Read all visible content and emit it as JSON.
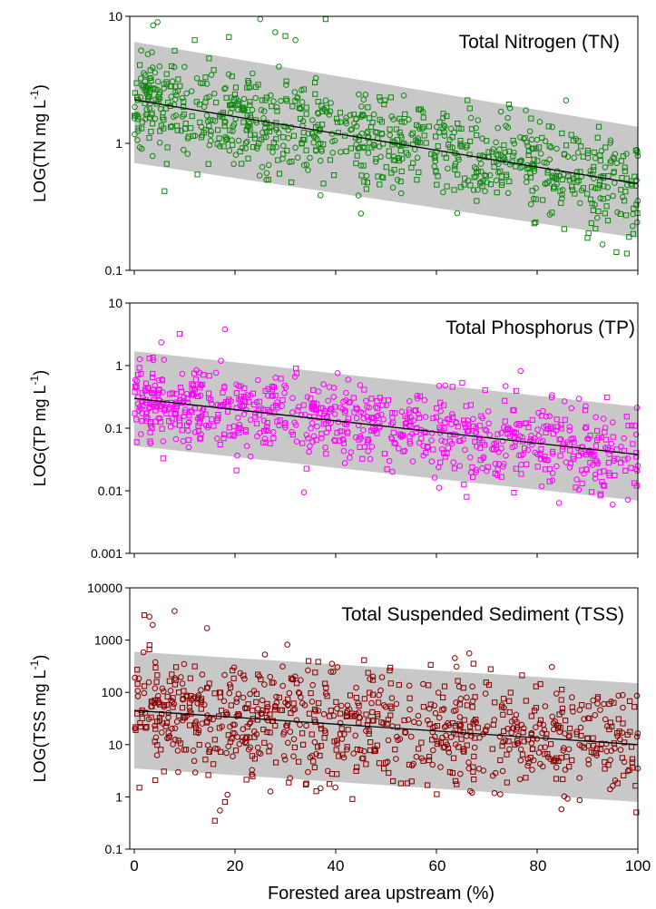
{
  "figure": {
    "xlabel": "Forested area upstream (%)",
    "x_ticks": [
      "0",
      "20",
      "40",
      "60",
      "80",
      "100"
    ]
  },
  "chart_data": [
    {
      "type": "scatter",
      "title": "Total Nitrogen (TN)",
      "ylabel": "LOG(TN mg L",
      "ylabel_sup": "-1",
      "ylabel_close": ")",
      "xlabel": "Forested area upstream (%)",
      "xlim": [
        0,
        100
      ],
      "ylim": [
        0.1,
        10
      ],
      "y_scale": "log",
      "y_ticks": [
        "0.1",
        "1",
        "10"
      ],
      "x_ticks": [
        "0",
        "20",
        "40",
        "60",
        "80",
        "100"
      ],
      "grid": false,
      "point_color": "#118811",
      "band_color": "#c8c8c8",
      "regression": {
        "x": [
          0,
          100
        ],
        "y": [
          2.2,
          0.48
        ]
      },
      "prediction_band": {
        "x": [
          0,
          100
        ],
        "lower": [
          0.7,
          0.18
        ],
        "upper": [
          6.3,
          1.35
        ]
      },
      "scatter_model": {
        "n": 900,
        "seed": 11,
        "sd_log10": 0.2,
        "outliers": [
          [
            25,
            9.5
          ],
          [
            38,
            9.5
          ],
          [
            28,
            7.5
          ],
          [
            30,
            7
          ],
          [
            32,
            6.5
          ],
          [
            12,
            6.5
          ],
          [
            45,
            0.28
          ],
          [
            90,
            0.18
          ],
          [
            93,
            0.16
          ],
          [
            6,
            0.42
          ]
        ]
      }
    },
    {
      "type": "scatter",
      "title": "Total Phosphorus (TP)",
      "ylabel": "LOG(TP mg L",
      "ylabel_sup": "-1",
      "ylabel_close": ")",
      "xlabel": "Forested area upstream (%)",
      "xlim": [
        0,
        100
      ],
      "ylim": [
        0.001,
        10
      ],
      "y_scale": "log",
      "y_ticks": [
        "0.001",
        "0.01",
        "0.1",
        "1",
        "10"
      ],
      "x_ticks": [
        "0",
        "20",
        "40",
        "60",
        "80",
        "100"
      ],
      "grid": false,
      "point_color": "#ff00ff",
      "band_color": "#c8c8c8",
      "regression": {
        "x": [
          0,
          100
        ],
        "y": [
          0.3,
          0.038
        ]
      },
      "prediction_band": {
        "x": [
          0,
          100
        ],
        "lower": [
          0.052,
          0.007
        ],
        "upper": [
          1.7,
          0.22
        ]
      },
      "scatter_model": {
        "n": 850,
        "seed": 23,
        "sd_log10": 0.33,
        "outliers": [
          [
            18,
            3.8
          ],
          [
            9,
            3.2
          ],
          [
            95,
            0.006
          ],
          [
            66,
            0.008
          ],
          [
            100,
            0.025
          ],
          [
            3,
            1.3
          ]
        ]
      }
    },
    {
      "type": "scatter",
      "title": "Total Suspended Sediment (TSS)",
      "ylabel": "LOG(TSS mg L",
      "ylabel_sup": "-1",
      "ylabel_close": ")",
      "xlabel": "Forested area upstream (%)",
      "xlim": [
        0,
        100
      ],
      "ylim": [
        0.1,
        10000
      ],
      "y_scale": "log",
      "y_ticks": [
        "0.1",
        "1",
        "10",
        "100",
        "1000",
        "10000"
      ],
      "x_ticks": [
        "0",
        "20",
        "40",
        "60",
        "80",
        "100"
      ],
      "grid": false,
      "point_color": "#8b0000",
      "band_color": "#c8c8c8",
      "regression": {
        "x": [
          0,
          100
        ],
        "y": [
          45,
          10
        ]
      },
      "prediction_band": {
        "x": [
          0,
          100
        ],
        "lower": [
          3.5,
          0.8
        ],
        "upper": [
          600,
          150
        ]
      },
      "scatter_model": {
        "n": 850,
        "seed": 37,
        "sd_log10": 0.55,
        "outliers": [
          [
            8,
            3600
          ],
          [
            2,
            3000
          ],
          [
            3,
            2800
          ],
          [
            16,
            0.35
          ],
          [
            17,
            0.55
          ],
          [
            18,
            0.8
          ],
          [
            18.5,
            1.1
          ],
          [
            1,
            1.5
          ],
          [
            100,
            3.5
          ]
        ]
      }
    }
  ]
}
